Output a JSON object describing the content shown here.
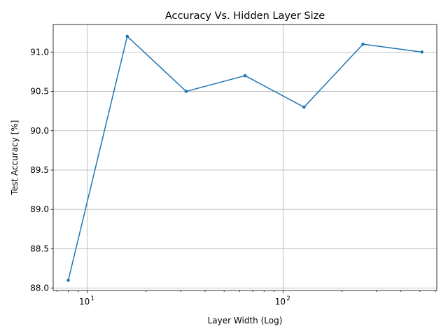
{
  "chart_data": {
    "type": "line",
    "title": "Accuracy Vs. Hidden Layer Size",
    "xlabel": "Layer Width (Log)",
    "ylabel": "Test Accuracy [%]",
    "xscale": "log",
    "xlim": [
      6.7,
      610
    ],
    "ylim": [
      87.97,
      91.35
    ],
    "grid": true,
    "x_ticks": [
      {
        "value": 10,
        "base": "10",
        "exp": "1"
      },
      {
        "value": 100,
        "base": "10",
        "exp": "2"
      }
    ],
    "y_ticks": [
      88.0,
      88.5,
      89.0,
      89.5,
      90.0,
      90.5,
      91.0
    ],
    "y_tick_labels": [
      "88.0",
      "88.5",
      "89.0",
      "89.5",
      "90.0",
      "90.5",
      "91.0"
    ],
    "series": [
      {
        "color": "#1f77b4",
        "x": [
          8,
          16,
          32,
          64,
          128,
          256,
          512
        ],
        "values": [
          88.1,
          91.2,
          90.5,
          90.7,
          90.3,
          91.1,
          91.0
        ]
      }
    ]
  }
}
